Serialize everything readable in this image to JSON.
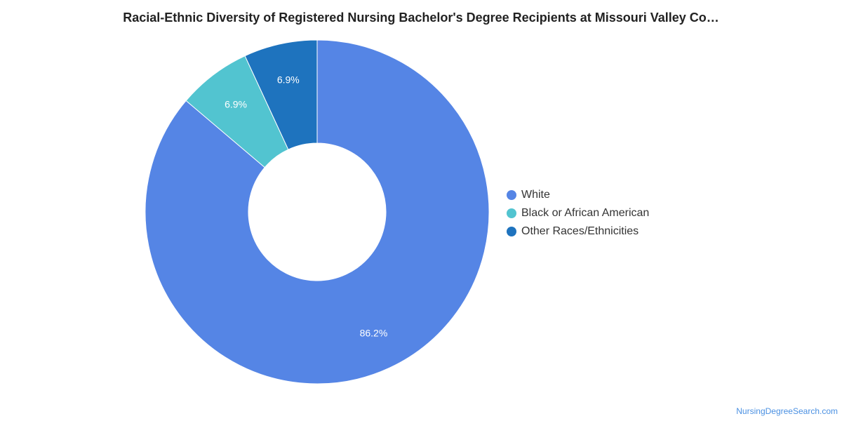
{
  "chart_data": {
    "type": "pie",
    "title": "Racial-Ethnic Diversity of Registered Nursing Bachelor's Degree Recipients at Missouri Valley Co…",
    "categories": [
      "White",
      "Black or African American",
      "Other Races/Ethnicities"
    ],
    "values": [
      86.2,
      6.9,
      6.9
    ],
    "value_labels": [
      "86.2%",
      "6.9%",
      "6.9%"
    ],
    "unit": "%",
    "colors": [
      "#5585e5",
      "#52c4d0",
      "#1e73be"
    ],
    "donut": true,
    "legend_position": "right"
  },
  "footer": {
    "watermark": "NursingDegreeSearch.com"
  }
}
